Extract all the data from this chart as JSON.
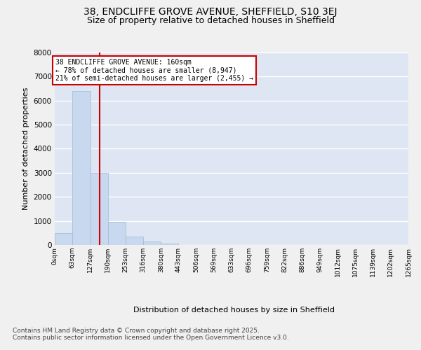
{
  "title_line1": "38, ENDCLIFFE GROVE AVENUE, SHEFFIELD, S10 3EJ",
  "title_line2": "Size of property relative to detached houses in Sheffield",
  "xlabel": "Distribution of detached houses by size in Sheffield",
  "ylabel": "Number of detached properties",
  "bar_color": "#c8d8ee",
  "bar_edge_color": "#a0b8d8",
  "background_color": "#dde6f2",
  "grid_color": "#ffffff",
  "fig_facecolor": "#f0f0f0",
  "vline_color": "#cc0000",
  "vline_x": 160,
  "annotation_line1": "38 ENDCLIFFE GROVE AVENUE: 160sqm",
  "annotation_line2": "← 78% of detached houses are smaller (8,947)",
  "annotation_line3": "21% of semi-detached houses are larger (2,455) →",
  "annotation_box_facecolor": "#ffffff",
  "annotation_box_edgecolor": "#cc0000",
  "bin_edges": [
    0,
    63,
    127,
    190,
    253,
    316,
    380,
    443,
    506,
    569,
    633,
    696,
    759,
    822,
    886,
    949,
    1012,
    1075,
    1139,
    1202,
    1265
  ],
  "bar_heights": [
    500,
    6400,
    3000,
    950,
    350,
    150,
    50,
    0,
    0,
    0,
    0,
    0,
    0,
    0,
    0,
    0,
    0,
    0,
    0,
    0
  ],
  "ylim": [
    0,
    8000
  ],
  "yticks": [
    0,
    1000,
    2000,
    3000,
    4000,
    5000,
    6000,
    7000,
    8000
  ],
  "footnote1": "Contains HM Land Registry data © Crown copyright and database right 2025.",
  "footnote2": "Contains public sector information licensed under the Open Government Licence v3.0."
}
